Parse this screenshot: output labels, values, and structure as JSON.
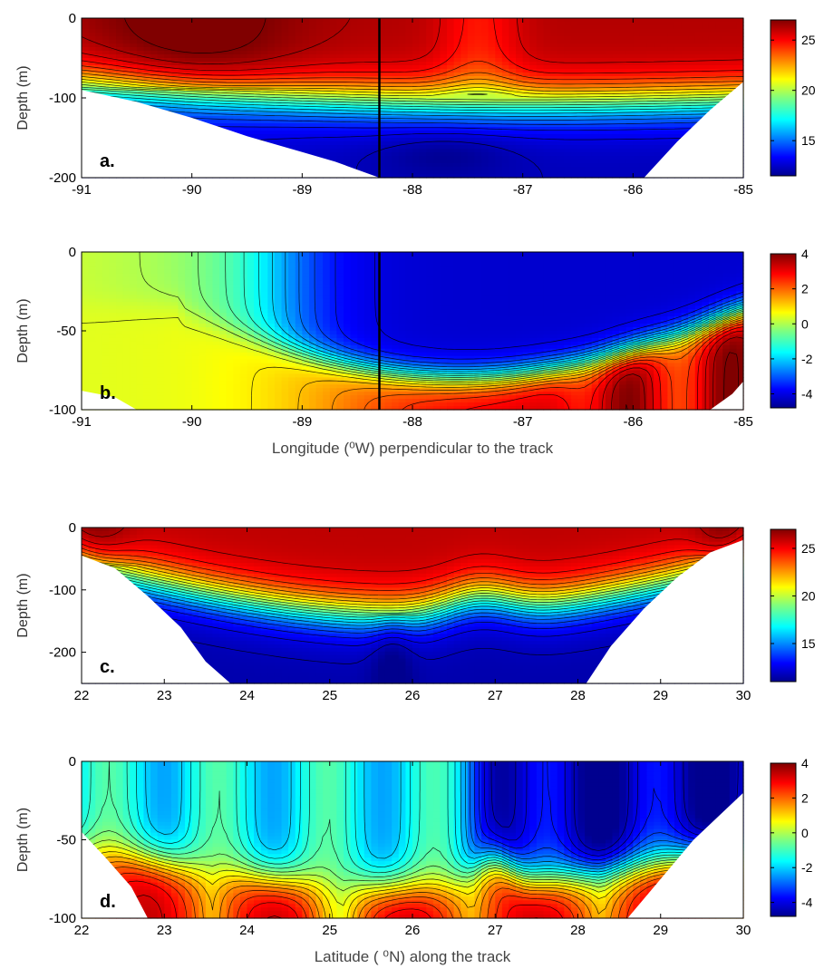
{
  "chart_data": [
    {
      "type": "heatmap",
      "panel_label": "a.",
      "ylabel": "Depth (m)",
      "xlabel": "",
      "xlim": [
        -91,
        -85
      ],
      "ylim": [
        -200,
        0
      ],
      "x_ticks": [
        "-91",
        "-90",
        "-89",
        "-88",
        "-87",
        "-86",
        "-85"
      ],
      "y_ticks": [
        "0",
        "-100",
        "-200"
      ],
      "colorbar": {
        "range": [
          11.5,
          27
        ],
        "ticks": [
          "25",
          "20",
          "15"
        ]
      },
      "marker_line_x": -88.3,
      "bottom_profile": [
        [
          -91,
          -90
        ],
        [
          -90.5,
          -105
        ],
        [
          -90,
          -125
        ],
        [
          -89.5,
          -148
        ],
        [
          -89,
          -168
        ],
        [
          -88.7,
          -180
        ],
        [
          -88.3,
          -200
        ]
      ],
      "bottom_profile_right": [
        [
          -85.9,
          -200
        ],
        [
          -85.6,
          -155
        ],
        [
          -85.3,
          -115
        ],
        [
          -85,
          -80
        ]
      ]
    },
    {
      "type": "heatmap",
      "panel_label": "b.",
      "ylabel": "Depth (m)",
      "xlabel": "Longitude (⁰W) perpendicular to the track",
      "xlim": [
        -91,
        -85
      ],
      "ylim": [
        -100,
        0
      ],
      "x_ticks": [
        "-91",
        "-90",
        "-89",
        "-88",
        "-87",
        "-86",
        "-85"
      ],
      "y_ticks": [
        "0",
        "-50",
        "-100"
      ],
      "colorbar": {
        "range": [
          -4.8,
          4
        ],
        "ticks": [
          "4",
          "2",
          "0",
          "-2",
          "-4"
        ]
      },
      "marker_line_x": -88.3,
      "bottom_profile": [
        [
          -91,
          -88
        ],
        [
          -90.7,
          -92
        ],
        [
          -90.5,
          -100
        ]
      ],
      "bottom_profile_right": [
        [
          -85.3,
          -100
        ],
        [
          -85.1,
          -90
        ],
        [
          -85,
          -82
        ]
      ]
    },
    {
      "type": "heatmap",
      "panel_label": "c.",
      "ylabel": "Depth (m)",
      "xlabel": "",
      "xlim": [
        22,
        30
      ],
      "ylim": [
        -250,
        0
      ],
      "x_ticks": [
        "22",
        "23",
        "24",
        "25",
        "26",
        "27",
        "28",
        "29",
        "30"
      ],
      "y_ticks": [
        "0",
        "-100",
        "-200"
      ],
      "colorbar": {
        "range": [
          11,
          27
        ],
        "ticks": [
          "25",
          "20",
          "15"
        ]
      },
      "bottom_profile": [
        [
          22,
          -45
        ],
        [
          22.4,
          -65
        ],
        [
          22.8,
          -110
        ],
        [
          23.2,
          -160
        ],
        [
          23.5,
          -215
        ],
        [
          23.8,
          -250
        ]
      ],
      "bottom_profile_right": [
        [
          28.1,
          -250
        ],
        [
          28.4,
          -190
        ],
        [
          28.8,
          -130
        ],
        [
          29.2,
          -80
        ],
        [
          29.6,
          -40
        ],
        [
          30,
          -20
        ]
      ]
    },
    {
      "type": "heatmap",
      "panel_label": "d.",
      "ylabel": "Depth (m)",
      "xlabel": "Latitude ( ⁰N) along the track",
      "xlim": [
        22,
        30
      ],
      "ylim": [
        -100,
        0
      ],
      "x_ticks": [
        "22",
        "23",
        "24",
        "25",
        "26",
        "27",
        "28",
        "29",
        "30"
      ],
      "y_ticks": [
        "0",
        "-50",
        "-100"
      ],
      "colorbar": {
        "range": [
          -4.8,
          4
        ],
        "ticks": [
          "4",
          "2",
          "0",
          "-2",
          "-4"
        ]
      },
      "bottom_profile": [
        [
          22,
          -45
        ],
        [
          22.3,
          -62
        ],
        [
          22.6,
          -80
        ],
        [
          22.8,
          -100
        ]
      ],
      "bottom_profile_right": [
        [
          28.6,
          -100
        ],
        [
          29,
          -75
        ],
        [
          29.4,
          -50
        ],
        [
          29.8,
          -30
        ],
        [
          30,
          -20
        ]
      ]
    }
  ]
}
